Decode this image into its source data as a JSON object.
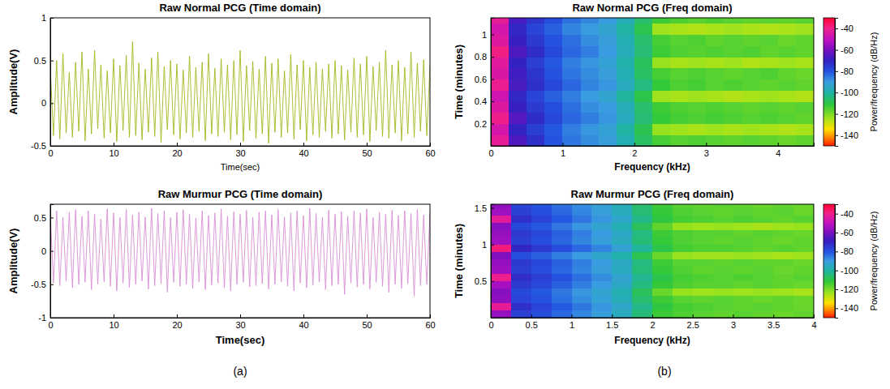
{
  "chart_data": [
    {
      "type": "line",
      "title": "Raw Normal PCG (Time domain)",
      "x_label": "Time(sec)",
      "y_label": "Amplitude(V)",
      "xlim": [
        0,
        60
      ],
      "ylim": [
        -0.5,
        1
      ],
      "xticks": [
        0,
        10,
        20,
        30,
        40,
        50,
        60
      ],
      "yticks": [
        -0.5,
        0,
        0.5,
        1
      ],
      "x": [
        0,
        0.5,
        1,
        1.5,
        2,
        2.5,
        3,
        3.5,
        4,
        4.5,
        5,
        5.5,
        6,
        6.5,
        7,
        7.5,
        8,
        8.5,
        9,
        9.5,
        10,
        10.5,
        11,
        11.5,
        12,
        12.5,
        13,
        13.5,
        14,
        14.5,
        15,
        15.5,
        16,
        16.5,
        17,
        17.5,
        18,
        18.5,
        19,
        19.5,
        20,
        20.5,
        21,
        21.5,
        22,
        22.5,
        23,
        23.5,
        24,
        24.5,
        25,
        25.5,
        26,
        26.5,
        27,
        27.5,
        28,
        28.5,
        29,
        29.5,
        30,
        30.5,
        31,
        31.5,
        32,
        32.5,
        33,
        33.5,
        34,
        34.5,
        35,
        35.5,
        36,
        36.5,
        37,
        37.5,
        38,
        38.5,
        39,
        39.5,
        40,
        40.5,
        41,
        41.5,
        42,
        42.5,
        43,
        43.5,
        44,
        44.5,
        45,
        45.5,
        46,
        46.5,
        47,
        47.5,
        48,
        48.5,
        49,
        49.5,
        50,
        50.5,
        51,
        51.5,
        52,
        52.5,
        53,
        53.5,
        54,
        54.5,
        55,
        55.5,
        56,
        56.5,
        57,
        57.5,
        58,
        58.5,
        59,
        59.5,
        60
      ],
      "series": [
        {
          "color": "#a6b51f",
          "values": [
            0.42,
            -0.38,
            0.5,
            -0.42,
            0.58,
            -0.35,
            0.36,
            -0.4,
            0.48,
            -0.33,
            0.6,
            -0.44,
            0.4,
            -0.36,
            0.62,
            -0.3,
            0.45,
            -0.41,
            0.38,
            -0.35,
            0.52,
            -0.45,
            0.44,
            -0.32,
            0.56,
            -0.4,
            0.72,
            -0.38,
            0.47,
            -0.43,
            0.4,
            -0.34,
            0.53,
            -0.39,
            0.6,
            -0.46,
            0.43,
            -0.31,
            0.5,
            -0.37,
            0.46,
            -0.42,
            0.39,
            -0.35,
            0.55,
            -0.4,
            0.42,
            -0.33,
            0.48,
            -0.44,
            0.58,
            -0.36,
            0.41,
            -0.39,
            0.52,
            -0.34,
            0.45,
            -0.43,
            0.5,
            -0.37,
            0.62,
            -0.45,
            0.44,
            -0.32,
            0.49,
            -0.41,
            0.4,
            -0.36,
            0.55,
            -0.47,
            0.47,
            -0.34,
            0.52,
            -0.4,
            0.38,
            -0.35,
            0.57,
            -0.42,
            0.45,
            -0.31,
            0.5,
            -0.44,
            0.42,
            -0.37,
            0.48,
            -0.4,
            0.4,
            -0.33,
            0.46,
            -0.41,
            0.5,
            -0.36,
            0.44,
            -0.43,
            0.39,
            -0.34,
            0.53,
            -0.4,
            0.46,
            -0.37,
            0.55,
            -0.45,
            0.43,
            -0.32,
            0.48,
            -0.39,
            0.62,
            -0.41,
            0.45,
            -0.35,
            0.5,
            -0.44,
            0.42,
            -0.36,
            0.6,
            -0.4,
            0.47,
            -0.33,
            0.51,
            -0.38,
            0.44
          ]
        }
      ]
    },
    {
      "type": "line",
      "title": "Raw Murmur PCG (Time domain)",
      "x_label": "Time(sec)",
      "y_label": "Amplitude(V)",
      "xlim": [
        0,
        60
      ],
      "ylim": [
        -1,
        0.7
      ],
      "xticks": [
        0,
        10,
        20,
        30,
        40,
        50,
        60
      ],
      "yticks": [
        -1,
        -0.5,
        0,
        0.5
      ],
      "x": [
        0,
        0.5,
        1,
        1.5,
        2,
        2.5,
        3,
        3.5,
        4,
        4.5,
        5,
        5.5,
        6,
        6.5,
        7,
        7.5,
        8,
        8.5,
        9,
        9.5,
        10,
        10.5,
        11,
        11.5,
        12,
        12.5,
        13,
        13.5,
        14,
        14.5,
        15,
        15.5,
        16,
        16.5,
        17,
        17.5,
        18,
        18.5,
        19,
        19.5,
        20,
        20.5,
        21,
        21.5,
        22,
        22.5,
        23,
        23.5,
        24,
        24.5,
        25,
        25.5,
        26,
        26.5,
        27,
        27.5,
        28,
        28.5,
        29,
        29.5,
        30,
        30.5,
        31,
        31.5,
        32,
        32.5,
        33,
        33.5,
        34,
        34.5,
        35,
        35.5,
        36,
        36.5,
        37,
        37.5,
        38,
        38.5,
        39,
        39.5,
        40,
        40.5,
        41,
        41.5,
        42,
        42.5,
        43,
        43.5,
        44,
        44.5,
        45,
        45.5,
        46,
        46.5,
        47,
        47.5,
        48,
        48.5,
        49,
        49.5,
        50,
        50.5,
        51,
        51.5,
        52,
        52.5,
        53,
        53.5,
        54,
        54.5,
        55,
        55.5,
        56,
        56.5,
        57,
        57.5,
        58,
        58.5,
        59,
        59.5,
        60
      ],
      "series": [
        {
          "color": "#d88fd6",
          "values": [
            0.55,
            -0.48,
            0.6,
            -0.52,
            0.5,
            -0.45,
            0.58,
            -0.55,
            0.62,
            -0.5,
            0.52,
            -0.47,
            0.6,
            -0.58,
            0.55,
            -0.5,
            0.48,
            -0.46,
            0.63,
            -0.53,
            0.57,
            -0.6,
            0.5,
            -0.48,
            0.62,
            -0.55,
            0.54,
            -0.5,
            0.58,
            -0.45,
            0.51,
            -0.57,
            0.64,
            -0.52,
            0.56,
            -0.49,
            0.6,
            -0.62,
            0.5,
            -0.47,
            0.58,
            -0.53,
            0.62,
            -0.5,
            0.55,
            -0.56,
            0.49,
            -0.46,
            0.6,
            -0.58,
            0.53,
            -0.51,
            0.57,
            -0.48,
            0.63,
            -0.55,
            0.52,
            -0.6,
            0.59,
            -0.5,
            0.55,
            -0.47,
            0.61,
            -0.54,
            0.5,
            -0.52,
            0.58,
            -0.49,
            0.6,
            -0.57,
            0.54,
            -0.5,
            0.62,
            -0.46,
            0.51,
            -0.53,
            0.57,
            -0.6,
            0.6,
            -0.48,
            0.53,
            -0.55,
            0.64,
            -0.51,
            0.56,
            -0.47,
            0.5,
            -0.58,
            0.61,
            -0.52,
            0.55,
            -0.5,
            0.59,
            -0.65,
            0.52,
            -0.48,
            0.6,
            -0.54,
            0.57,
            -0.5,
            0.63,
            -0.57,
            0.5,
            -0.47,
            0.58,
            -0.53,
            0.55,
            -0.62,
            0.61,
            -0.5,
            0.53,
            -0.56,
            0.6,
            -0.49,
            0.56,
            -0.68,
            0.62,
            -0.52,
            0.54,
            -0.5,
            0.58
          ]
        }
      ]
    },
    {
      "type": "heatmap",
      "title": "Raw Normal PCG (Freq domain)",
      "x_label": "Frequency (kHz)",
      "y_label": "Time (minutes)",
      "xlim": [
        0,
        4.5
      ],
      "ylim": [
        0,
        1.15
      ],
      "xticks": [
        0,
        1,
        2,
        3,
        4
      ],
      "yticks": [
        0.2,
        0.4,
        0.6,
        0.8,
        1
      ],
      "x_edges": [
        0,
        0.25,
        0.5,
        0.75,
        1,
        1.25,
        1.5,
        1.75,
        2,
        2.25,
        2.5,
        2.75,
        3,
        3.25,
        3.5,
        3.75,
        4,
        4.25,
        4.5
      ],
      "y_edges": [
        0,
        0.1,
        0.2,
        0.3,
        0.4,
        0.5,
        0.6,
        0.7,
        0.8,
        0.9,
        1,
        1.1,
        1.15
      ],
      "cells": [
        [
          -42,
          -66,
          -73,
          -80,
          -85,
          -88,
          -91,
          -98,
          -107,
          -114,
          -116,
          -115,
          -116,
          -117,
          -116,
          -117,
          -118,
          -117
        ],
        [
          -46,
          -70,
          -76,
          -81,
          -86,
          -89,
          -92,
          -100,
          -109,
          -123,
          -124,
          -125,
          -124,
          -125,
          -124,
          -125,
          -126,
          -125
        ],
        [
          -40,
          -65,
          -72,
          -78,
          -83,
          -86,
          -89,
          -96,
          -105,
          -112,
          -114,
          -115,
          -114,
          -115,
          -116,
          -115,
          -116,
          -117
        ],
        [
          -44,
          -69,
          -75,
          -79,
          -84,
          -88,
          -90,
          -97,
          -106,
          -113,
          -115,
          -116,
          -115,
          -116,
          -117,
          -116,
          -117,
          -116
        ],
        [
          -47,
          -71,
          -77,
          -82,
          -86,
          -90,
          -93,
          -101,
          -110,
          -124,
          -125,
          -124,
          -125,
          -126,
          -125,
          -124,
          -125,
          -126
        ],
        [
          -41,
          -67,
          -73,
          -78,
          -83,
          -87,
          -89,
          -96,
          -104,
          -112,
          -115,
          -114,
          -116,
          -115,
          -116,
          -117,
          -116,
          -117
        ],
        [
          -45,
          -68,
          -74,
          -80,
          -85,
          -88,
          -91,
          -98,
          -107,
          -114,
          -116,
          -115,
          -116,
          -117,
          -116,
          -115,
          -117,
          -118
        ],
        [
          -43,
          -70,
          -76,
          -81,
          -86,
          -89,
          -92,
          -99,
          -108,
          -123,
          -125,
          -124,
          -125,
          -124,
          -126,
          -125,
          -124,
          -125
        ],
        [
          -39,
          -66,
          -72,
          -78,
          -83,
          -86,
          -90,
          -97,
          -105,
          -113,
          -115,
          -116,
          -115,
          -116,
          -115,
          -117,
          -116,
          -117
        ],
        [
          -44,
          -69,
          -75,
          -80,
          -84,
          -88,
          -91,
          -98,
          -106,
          -114,
          -116,
          -115,
          -117,
          -116,
          -117,
          -116,
          -118,
          -117
        ],
        [
          -46,
          -71,
          -77,
          -82,
          -87,
          -90,
          -93,
          -100,
          -109,
          -124,
          -125,
          -126,
          -125,
          -124,
          -125,
          -126,
          -125,
          -124
        ],
        [
          -42,
          -67,
          -74,
          -79,
          -84,
          -87,
          -90,
          -97,
          -106,
          -113,
          -115,
          -116,
          -115,
          -116,
          -117,
          -116,
          -117,
          -116
        ]
      ],
      "colorbar": {
        "label": "Power/frequency (dB/Hz)",
        "range": [
          -150,
          -30
        ],
        "ticks": [
          -40,
          -60,
          -80,
          -100,
          -120,
          -140
        ]
      }
    },
    {
      "type": "heatmap",
      "title": "Raw Murmur PCG (Freq domain)",
      "x_label": "Frequency (kHz)",
      "y_label": "Time (minutes)",
      "xlim": [
        0,
        4
      ],
      "ylim": [
        0,
        1.55
      ],
      "xticks": [
        0,
        0.5,
        1,
        1.5,
        2,
        2.5,
        3,
        3.5,
        4
      ],
      "yticks": [
        0.5,
        1,
        1.5
      ],
      "x_edges": [
        0,
        0.25,
        0.5,
        0.75,
        1,
        1.25,
        1.5,
        1.75,
        2,
        2.25,
        2.5,
        2.75,
        3,
        3.25,
        3.5,
        3.75,
        4
      ],
      "y_edges": [
        0,
        0.1,
        0.2,
        0.3,
        0.4,
        0.5,
        0.6,
        0.7,
        0.8,
        0.9,
        1,
        1.1,
        1.2,
        1.3,
        1.4,
        1.5,
        1.55
      ],
      "cells": [
        [
          -56,
          -76,
          -79,
          -83,
          -87,
          -91,
          -96,
          -105,
          -113,
          -115,
          -116,
          -117,
          -116,
          -117,
          -118,
          -117
        ],
        [
          -42,
          -73,
          -77,
          -81,
          -85,
          -89,
          -94,
          -103,
          -111,
          -114,
          -115,
          -116,
          -117,
          -116,
          -117,
          -118
        ],
        [
          -57,
          -77,
          -80,
          -84,
          -88,
          -92,
          -97,
          -106,
          -113,
          -116,
          -117,
          -116,
          -117,
          -118,
          -117,
          -118
        ],
        [
          -58,
          -78,
          -81,
          -85,
          -89,
          -93,
          -98,
          -108,
          -118,
          -123,
          -124,
          -123,
          -124,
          -123,
          -124,
          -125
        ],
        [
          -54,
          -75,
          -78,
          -82,
          -86,
          -90,
          -95,
          -104,
          -112,
          -115,
          -116,
          -116,
          -117,
          -116,
          -117,
          -118
        ],
        [
          -40,
          -72,
          -76,
          -80,
          -84,
          -88,
          -93,
          -102,
          -110,
          -114,
          -115,
          -116,
          -115,
          -116,
          -117,
          -116
        ],
        [
          -55,
          -76,
          -79,
          -83,
          -87,
          -91,
          -96,
          -105,
          -112,
          -115,
          -117,
          -116,
          -117,
          -116,
          -118,
          -117
        ],
        [
          -56,
          -75,
          -78,
          -82,
          -86,
          -90,
          -95,
          -104,
          -113,
          -116,
          -116,
          -117,
          -116,
          -117,
          -117,
          -118
        ],
        [
          -59,
          -79,
          -82,
          -86,
          -90,
          -94,
          -99,
          -109,
          -118,
          -123,
          -124,
          -124,
          -123,
          -124,
          -125,
          -124
        ],
        [
          -38,
          -71,
          -75,
          -79,
          -83,
          -87,
          -92,
          -101,
          -110,
          -114,
          -115,
          -115,
          -116,
          -117,
          -116,
          -117
        ],
        [
          -55,
          -76,
          -79,
          -83,
          -87,
          -91,
          -96,
          -105,
          -112,
          -115,
          -116,
          -117,
          -116,
          -117,
          -118,
          -117
        ],
        [
          -56,
          -75,
          -78,
          -82,
          -86,
          -90,
          -95,
          -104,
          -113,
          -115,
          -116,
          -116,
          -117,
          -116,
          -117,
          -118
        ],
        [
          -58,
          -78,
          -81,
          -85,
          -89,
          -93,
          -98,
          -108,
          -117,
          -123,
          -124,
          -123,
          -124,
          -125,
          -124,
          -123
        ],
        [
          -43,
          -73,
          -77,
          -81,
          -85,
          -89,
          -94,
          -103,
          -111,
          -114,
          -115,
          -116,
          -115,
          -116,
          -117,
          -116
        ],
        [
          -55,
          -76,
          -79,
          -83,
          -87,
          -91,
          -96,
          -105,
          -112,
          -115,
          -116,
          -117,
          -116,
          -117,
          -116,
          -118
        ],
        [
          -57,
          -77,
          -80,
          -84,
          -88,
          -92,
          -97,
          -106,
          -113,
          -116,
          -117,
          -116,
          -117,
          -118,
          -117,
          -118
        ]
      ],
      "colorbar": {
        "label": "Power/frequency (dB/Hz)",
        "range": [
          -150,
          -30
        ],
        "ticks": [
          -40,
          -60,
          -80,
          -100,
          -120,
          -140
        ]
      }
    }
  ],
  "panel_labels": [
    "(a)",
    "(b)"
  ]
}
